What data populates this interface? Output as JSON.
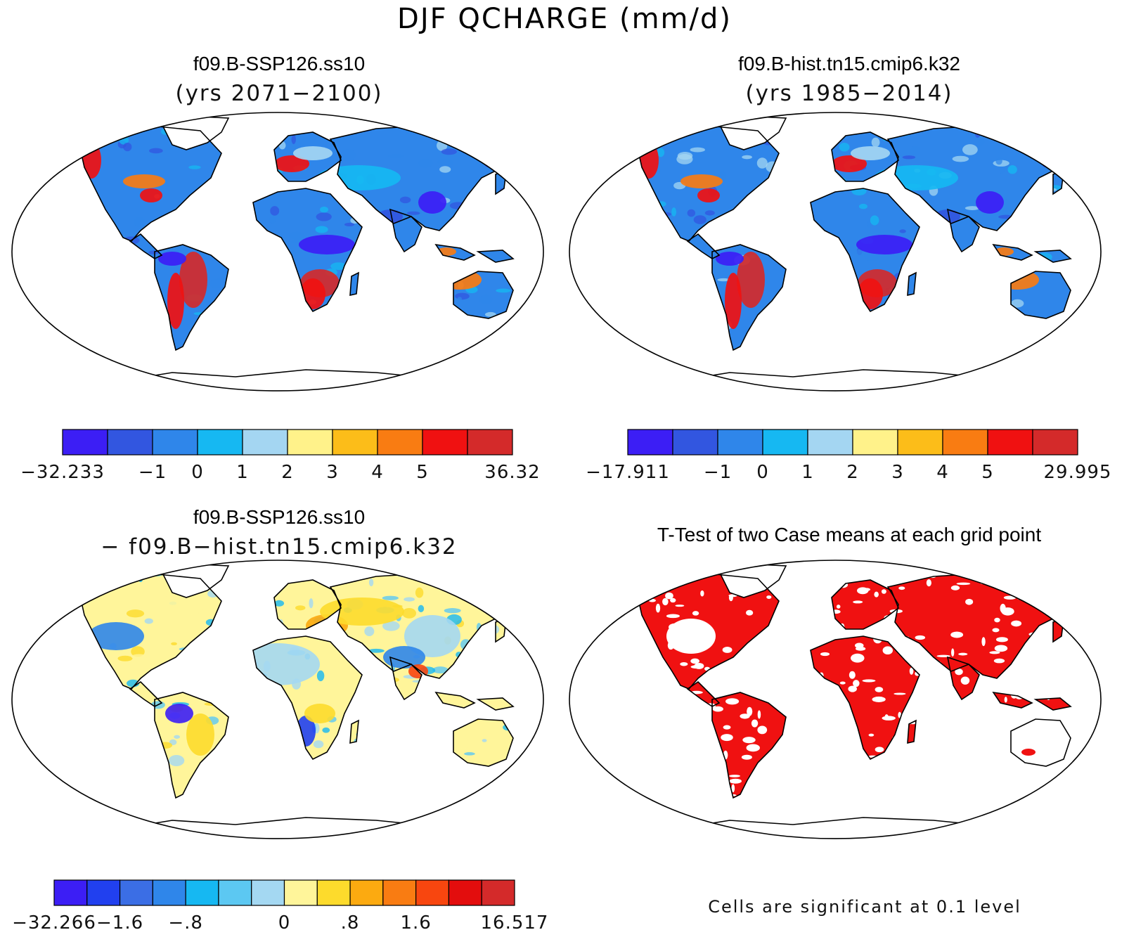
{
  "figure_title": "DJF QCHARGE (mm/d)",
  "panels": [
    {
      "id": "top-left",
      "title_line1": "f09.B-SSP126.ss10",
      "title_line2": "(yrs 2071−2100)",
      "kind": "field",
      "palette": "main"
    },
    {
      "id": "top-right",
      "title_line1": "f09.B-hist.tn15.cmip6.k32",
      "title_line2": "(yrs 1985−2014)",
      "kind": "field",
      "palette": "main"
    },
    {
      "id": "bottom-left",
      "title_line1": "f09.B-SSP126.ss10",
      "title_line2": "− f09.B−hist.tn15.cmip6.k32",
      "kind": "diff",
      "palette": "diff"
    },
    {
      "id": "bottom-right",
      "title_line1": "T-Test of two Case means at each grid point",
      "title_line2": "",
      "kind": "ttest",
      "palette": "sig"
    }
  ],
  "colorbars": [
    {
      "id": "cb-top-left",
      "colors": [
        "#3c1ef5",
        "#3256e0",
        "#2f86ea",
        "#16b8f2",
        "#a4d6f2",
        "#fff28a",
        "#fcbd19",
        "#f97c12",
        "#f01111",
        "#d42a2a"
      ],
      "labels": [
        "−32.233",
        "−1",
        "0",
        "1",
        "2",
        "3",
        "4",
        "5",
        "36.32"
      ]
    },
    {
      "id": "cb-top-right",
      "colors": [
        "#3c1ef5",
        "#3256e0",
        "#2f86ea",
        "#16b8f2",
        "#a4d6f2",
        "#fff28a",
        "#fcbd19",
        "#f97c12",
        "#f01111",
        "#d42a2a"
      ],
      "labels": [
        "−17.911",
        "−1",
        "0",
        "1",
        "2",
        "3",
        "4",
        "5",
        "29.995"
      ]
    },
    {
      "id": "cb-bottom-left",
      "colors": [
        "#3c1ef5",
        "#2140ef",
        "#3b6ee5",
        "#2f86ea",
        "#16b8f2",
        "#5cc8f2",
        "#a4d8f2",
        "#fff59a",
        "#fddb2c",
        "#fcaa10",
        "#f97c12",
        "#f8460f",
        "#e30d0d",
        "#d42a2a"
      ],
      "labels": [
        "−32.266",
        "−1.6",
        "−.8",
        "0",
        ".8",
        "1.6",
        "16.517"
      ]
    }
  ],
  "significance_note": "Cells are significant at 0.1 level",
  "colors": {
    "ocean": "#ffffff",
    "coast": "#000000",
    "field_base": "#2f86ea",
    "diff_base": "#fff28a",
    "sig_fill": "#f01111"
  }
}
